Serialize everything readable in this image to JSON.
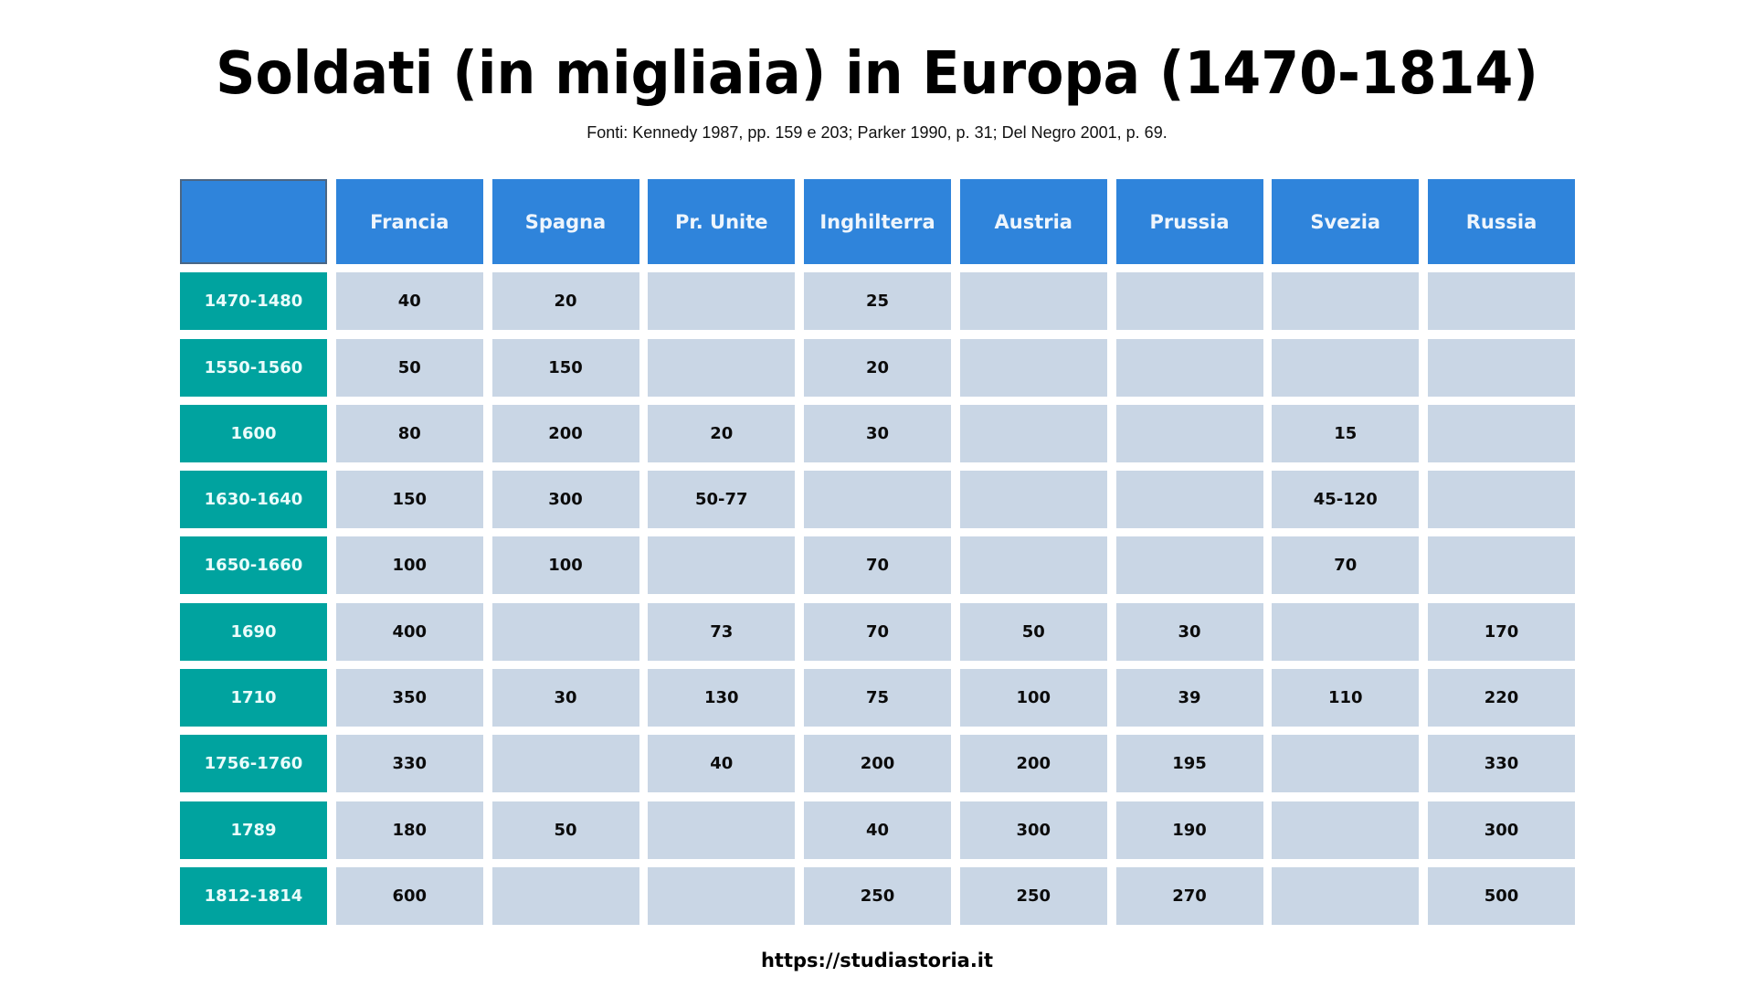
{
  "title": "Soldati (in migliaia) in Europa (1470-1814)",
  "subtitle": "Fonti: Kennedy 1987, pp. 159 e 203; Parker 1990, p. 31; Del Negro 2001, p. 69.",
  "footer": "https://studiastoria.it",
  "colors": {
    "header_blue": "#2f84db",
    "row_header_teal": "#00a39f",
    "cell_bg": "#c9d6e5",
    "corner_border": "#4a6685"
  },
  "table": {
    "corner_label": "",
    "columns": [
      "Francia",
      "Spagna",
      "Pr. Unite",
      "Inghilterra",
      "Austria",
      "Prussia",
      "Svezia",
      "Russia"
    ],
    "rows": [
      {
        "period": "1470-1480",
        "values": [
          "40",
          "20",
          "",
          "25",
          "",
          "",
          "",
          ""
        ]
      },
      {
        "period": "1550-1560",
        "values": [
          "50",
          "150",
          "",
          "20",
          "",
          "",
          "",
          ""
        ]
      },
      {
        "period": "1600",
        "values": [
          "80",
          "200",
          "20",
          "30",
          "",
          "",
          "15",
          ""
        ]
      },
      {
        "period": "1630-1640",
        "values": [
          "150",
          "300",
          "50-77",
          "",
          "",
          "",
          "45-120",
          ""
        ]
      },
      {
        "period": "1650-1660",
        "values": [
          "100",
          "100",
          "",
          "70",
          "",
          "",
          "70",
          ""
        ]
      },
      {
        "period": "1690",
        "values": [
          "400",
          "",
          "73",
          "70",
          "50",
          "30",
          "",
          "170"
        ]
      },
      {
        "period": "1710",
        "values": [
          "350",
          "30",
          "130",
          "75",
          "100",
          "39",
          "110",
          "220"
        ]
      },
      {
        "period": "1756-1760",
        "values": [
          "330",
          "",
          "40",
          "200",
          "200",
          "195",
          "",
          "330"
        ]
      },
      {
        "period": "1789",
        "values": [
          "180",
          "50",
          "",
          "40",
          "300",
          "190",
          "",
          "300"
        ]
      },
      {
        "period": "1812-1814",
        "values": [
          "600",
          "",
          "",
          "250",
          "250",
          "270",
          "",
          "500"
        ]
      }
    ]
  },
  "chart_data": {
    "type": "table",
    "title": "Soldati (in migliaia) in Europa (1470-1814)",
    "subtitle": "Fonti: Kennedy 1987, pp. 159 e 203; Parker 1990, p. 31; Del Negro 2001, p. 69.",
    "unit": "migliaia di soldati",
    "columns": [
      "Francia",
      "Spagna",
      "Pr. Unite",
      "Inghilterra",
      "Austria",
      "Prussia",
      "Svezia",
      "Russia"
    ],
    "categories": [
      "1470-1480",
      "1550-1560",
      "1600",
      "1630-1640",
      "1650-1660",
      "1690",
      "1710",
      "1756-1760",
      "1789",
      "1812-1814"
    ],
    "series": [
      {
        "name": "Francia",
        "values": [
          "40",
          "50",
          "80",
          "150",
          "100",
          "400",
          "350",
          "330",
          "180",
          "600"
        ]
      },
      {
        "name": "Spagna",
        "values": [
          "20",
          "150",
          "200",
          "300",
          "100",
          "",
          "30",
          "",
          "50",
          ""
        ]
      },
      {
        "name": "Pr. Unite",
        "values": [
          "",
          "",
          "20",
          "50-77",
          "",
          "73",
          "130",
          "40",
          "",
          ""
        ]
      },
      {
        "name": "Inghilterra",
        "values": [
          "25",
          "20",
          "30",
          "",
          "70",
          "70",
          "75",
          "200",
          "40",
          "250"
        ]
      },
      {
        "name": "Austria",
        "values": [
          "",
          "",
          "",
          "",
          "",
          "50",
          "100",
          "200",
          "300",
          "250"
        ]
      },
      {
        "name": "Prussia",
        "values": [
          "",
          "",
          "",
          "",
          "",
          "30",
          "39",
          "195",
          "190",
          "270"
        ]
      },
      {
        "name": "Svezia",
        "values": [
          "",
          "",
          "15",
          "45-120",
          "70",
          "",
          "110",
          "",
          "",
          ""
        ]
      },
      {
        "name": "Russia",
        "values": [
          "",
          "",
          "",
          "",
          "",
          "170",
          "220",
          "330",
          "300",
          "500"
        ]
      }
    ]
  }
}
